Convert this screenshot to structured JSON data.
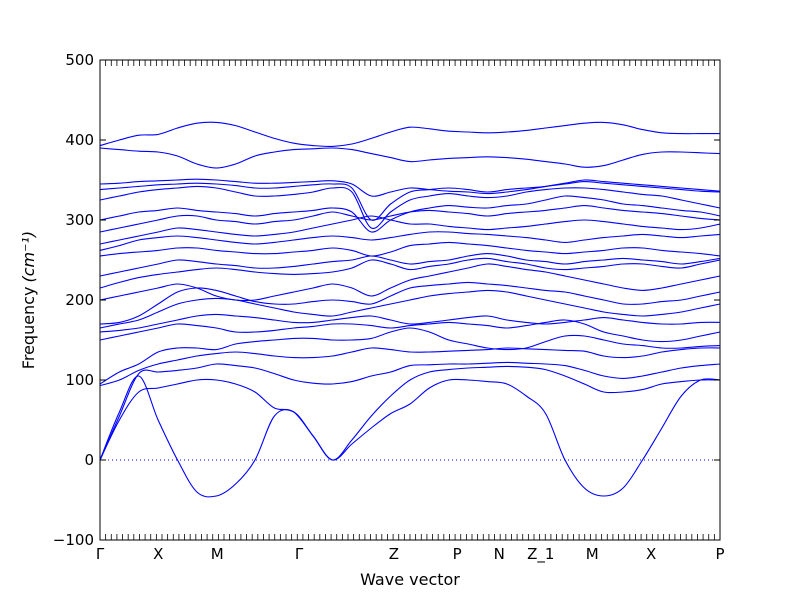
{
  "chart_data": {
    "type": "line",
    "title": "",
    "xlabel": "Wave vector",
    "ylabel": "Frequency",
    "ylabel_unit": "(cm⁻¹)",
    "ylim": [
      -100,
      500
    ],
    "yticks": [
      -100,
      0,
      100,
      200,
      300,
      400,
      500
    ],
    "line_color": "#0000ff",
    "zero_line_color": "#0000ff",
    "grid": false,
    "kpath": [
      {
        "label": "Γ",
        "x": 0.0
      },
      {
        "label": "X",
        "x": 0.094
      },
      {
        "label": "M",
        "x": 0.189
      },
      {
        "label": "Γ",
        "x": 0.321
      },
      {
        "label": "Z",
        "x": 0.474
      },
      {
        "label": "P",
        "x": 0.576
      },
      {
        "label": "N",
        "x": 0.644
      },
      {
        "label": "Z_1",
        "x": 0.711
      },
      {
        "label": "M",
        "x": 0.794
      },
      {
        "label": "X",
        "x": 0.889
      },
      {
        "label": "P",
        "x": 1.0
      }
    ],
    "series": [
      {
        "values": [
          0,
          60,
          105,
          50,
          0,
          -40,
          -45,
          -30,
          0,
          55,
          60,
          30,
          0,
          20,
          40,
          58,
          70,
          90,
          100,
          100,
          98,
          95,
          80,
          58,
          0,
          -35,
          -45,
          -35,
          0,
          40,
          80,
          100,
          100
        ]
      },
      {
        "values": [
          0,
          50,
          85,
          90,
          95,
          100,
          100,
          95,
          85,
          65,
          60,
          30,
          0,
          25,
          55,
          80,
          100,
          110,
          113,
          115,
          116,
          117,
          116,
          113,
          105,
          95,
          85,
          85,
          88,
          95,
          98,
          100,
          100
        ]
      },
      {
        "values": [
          0,
          55,
          108,
          110,
          112,
          115,
          120,
          118,
          115,
          108,
          100,
          96,
          95,
          98,
          105,
          110,
          118,
          119,
          120,
          120,
          121,
          122,
          121,
          120,
          118,
          112,
          105,
          102,
          105,
          110,
          115,
          118,
          120
        ]
      },
      {
        "values": [
          93,
          100,
          112,
          120,
          125,
          130,
          133,
          135,
          133,
          130,
          128,
          128,
          130,
          135,
          140,
          138,
          135,
          135,
          136,
          137,
          138,
          140,
          139,
          138,
          137,
          136,
          130,
          128,
          130,
          135,
          138,
          140,
          140
        ]
      },
      {
        "values": [
          95,
          110,
          120,
          135,
          140,
          140,
          138,
          145,
          148,
          150,
          152,
          152,
          150,
          150,
          152,
          160,
          165,
          160,
          150,
          145,
          140,
          138,
          140,
          148,
          155,
          155,
          150,
          145,
          143,
          140,
          140,
          142,
          143
        ]
      },
      {
        "values": [
          150,
          155,
          160,
          165,
          170,
          168,
          165,
          160,
          160,
          162,
          165,
          167,
          170,
          170,
          168,
          165,
          168,
          170,
          172,
          170,
          168,
          165,
          168,
          172,
          175,
          170,
          160,
          155,
          150,
          148,
          150,
          155,
          160
        ]
      },
      {
        "values": [
          160,
          162,
          165,
          170,
          175,
          180,
          182,
          180,
          178,
          175,
          172,
          172,
          175,
          178,
          180,
          175,
          170,
          172,
          175,
          178,
          180,
          175,
          172,
          170,
          172,
          175,
          178,
          175,
          172,
          170,
          170,
          172,
          172
        ]
      },
      {
        "values": [
          165,
          170,
          175,
          185,
          195,
          200,
          202,
          200,
          195,
          190,
          185,
          182,
          180,
          185,
          190,
          195,
          200,
          205,
          208,
          210,
          212,
          210,
          205,
          200,
          195,
          190,
          185,
          182,
          180,
          182,
          185,
          190,
          195
        ]
      },
      {
        "values": [
          170,
          172,
          180,
          195,
          210,
          215,
          212,
          205,
          198,
          195,
          195,
          198,
          200,
          198,
          195,
          205,
          215,
          218,
          220,
          222,
          220,
          218,
          215,
          212,
          210,
          205,
          200,
          195,
          195,
          198,
          200,
          205,
          210
        ]
      },
      {
        "values": [
          200,
          205,
          210,
          215,
          220,
          215,
          205,
          200,
          200,
          205,
          210,
          215,
          220,
          215,
          205,
          215,
          225,
          230,
          235,
          240,
          245,
          242,
          238,
          235,
          230,
          225,
          220,
          215,
          212,
          215,
          220,
          225,
          230
        ]
      },
      {
        "values": [
          215,
          222,
          228,
          232,
          235,
          238,
          240,
          238,
          235,
          233,
          232,
          233,
          235,
          240,
          250,
          245,
          238,
          242,
          245,
          250,
          252,
          248,
          245,
          240,
          238,
          240,
          242,
          245,
          245,
          242,
          240,
          245,
          250
        ]
      },
      {
        "values": [
          230,
          235,
          240,
          245,
          250,
          248,
          245,
          243,
          240,
          240,
          242,
          245,
          248,
          250,
          255,
          250,
          245,
          248,
          250,
          255,
          258,
          255,
          250,
          248,
          245,
          248,
          250,
          252,
          250,
          248,
          245,
          248,
          252
        ]
      },
      {
        "values": [
          255,
          258,
          260,
          262,
          265,
          265,
          262,
          260,
          258,
          258,
          260,
          262,
          265,
          262,
          255,
          260,
          268,
          270,
          272,
          270,
          268,
          265,
          262,
          260,
          258,
          260,
          262,
          265,
          265,
          262,
          260,
          258,
          255
        ]
      },
      {
        "values": [
          262,
          268,
          275,
          278,
          280,
          278,
          275,
          272,
          270,
          272,
          275,
          278,
          280,
          278,
          275,
          278,
          282,
          285,
          285,
          283,
          282,
          280,
          278,
          275,
          272,
          275,
          278,
          280,
          282,
          280,
          278,
          280,
          282
        ]
      },
      {
        "values": [
          270,
          275,
          280,
          285,
          290,
          288,
          285,
          282,
          280,
          282,
          285,
          290,
          295,
          300,
          305,
          300,
          295,
          295,
          292,
          290,
          288,
          290,
          292,
          295,
          298,
          300,
          298,
          295,
          292,
          290,
          288,
          290,
          295
        ]
      },
      {
        "values": [
          285,
          290,
          295,
          300,
          305,
          305,
          300,
          298,
          295,
          298,
          300,
          305,
          310,
          305,
          300,
          305,
          310,
          312,
          310,
          308,
          305,
          308,
          310,
          312,
          315,
          318,
          315,
          312,
          310,
          308,
          305,
          302,
          300
        ]
      },
      {
        "values": [
          300,
          305,
          310,
          312,
          315,
          312,
          310,
          308,
          305,
          308,
          310,
          312,
          315,
          310,
          285,
          300,
          310,
          315,
          318,
          316,
          315,
          318,
          320,
          325,
          330,
          328,
          325,
          320,
          318,
          315,
          312,
          310,
          305
        ]
      },
      {
        "values": [
          325,
          330,
          335,
          338,
          340,
          342,
          340,
          335,
          330,
          330,
          332,
          335,
          340,
          335,
          290,
          310,
          325,
          330,
          333,
          330,
          328,
          330,
          335,
          338,
          340,
          340,
          338,
          335,
          332,
          330,
          325,
          320,
          315
        ]
      },
      {
        "values": [
          338,
          340,
          342,
          344,
          345,
          346,
          345,
          343,
          340,
          340,
          342,
          344,
          345,
          340,
          300,
          320,
          335,
          338,
          340,
          338,
          335,
          338,
          340,
          342,
          345,
          348,
          346,
          344,
          342,
          340,
          338,
          336,
          335
        ]
      },
      {
        "values": [
          345,
          346,
          348,
          349,
          350,
          351,
          350,
          348,
          346,
          346,
          347,
          348,
          349,
          345,
          330,
          335,
          340,
          338,
          336,
          335,
          333,
          335,
          338,
          342,
          346,
          350,
          348,
          346,
          344,
          342,
          340,
          338,
          336
        ]
      },
      {
        "values": [
          390,
          388,
          386,
          385,
          380,
          370,
          365,
          370,
          380,
          385,
          388,
          389,
          390,
          388,
          383,
          378,
          373,
          375,
          377,
          378,
          379,
          378,
          376,
          373,
          370,
          366,
          368,
          375,
          382,
          385,
          385,
          384,
          383
        ]
      },
      {
        "values": [
          393,
          400,
          406,
          407,
          415,
          421,
          422,
          418,
          410,
          402,
          396,
          393,
          392,
          395,
          402,
          410,
          416,
          414,
          411,
          410,
          409,
          410,
          412,
          415,
          418,
          421,
          422,
          419,
          413,
          409,
          408,
          408,
          408
        ]
      }
    ]
  }
}
